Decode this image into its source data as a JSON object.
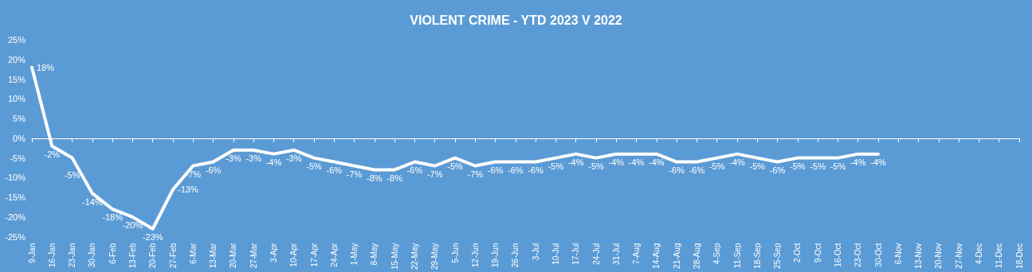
{
  "chart_data": {
    "type": "line",
    "title": "VIOLENT CRIME - YTD 2023 V 2022",
    "categories": [
      "9-Jan",
      "16-Jan",
      "23-Jan",
      "30-Jan",
      "6-Feb",
      "13-Feb",
      "20-Feb",
      "27-Feb",
      "6-Mar",
      "13-Mar",
      "20-Mar",
      "27-Mar",
      "3-Apr",
      "10-Apr",
      "17-Apr",
      "24-Apr",
      "1-May",
      "8-May",
      "15-May",
      "22-May",
      "29-May",
      "5-Jun",
      "12-Jun",
      "19-Jun",
      "26-Jun",
      "3-Jul",
      "10-Jul",
      "17-Jul",
      "24-Jul",
      "31-Jul",
      "7-Aug",
      "14-Aug",
      "21-Aug",
      "28-Aug",
      "4-Sep",
      "11-Sep",
      "18-Sep",
      "25-Sep",
      "2-Oct",
      "9-Oct",
      "16-Oct",
      "23-Oct",
      "30-Oct",
      "6-Nov",
      "13-Nov",
      "20-Nov",
      "27-Nov",
      "4-Dec",
      "11-Dec",
      "18-Dec"
    ],
    "series": [
      {
        "color": "#ffffff",
        "values": [
          18,
          -2,
          -5,
          -14,
          -18,
          -20,
          -23,
          -13,
          -7,
          -6,
          -3,
          -3,
          -4,
          -3,
          -5,
          -6,
          -7,
          -8,
          -8,
          -6,
          -7,
          -5,
          -7,
          -6,
          -6,
          -6,
          -5,
          -4,
          -5,
          -4,
          -4,
          -4,
          -6,
          -6,
          -5,
          -4,
          -5,
          -6,
          -5,
          -5,
          -5,
          -4,
          -4,
          null,
          null,
          null,
          null,
          null,
          null,
          null
        ],
        "value_labels": [
          "18%",
          "-2%",
          "-5%",
          "-14%",
          "-18%",
          "-20%",
          "-23%",
          "-13%",
          "-7%",
          "-6%",
          "-3%",
          "-3%",
          "-4%",
          "-3%",
          "-5%",
          "-6%",
          "-7%",
          "-8%",
          "-8%",
          "-6%",
          "-7%",
          "-5%",
          "-7%",
          "-6%",
          "-6%",
          "-6%",
          "-5%",
          "-4%",
          "-5%",
          "-4%",
          "-4%",
          "-4%",
          "-6%",
          "-6%",
          "-5%",
          "-4%",
          "-5%",
          "-6%",
          "-5%",
          "-5%",
          "-5%",
          "-4%",
          "-4%",
          null,
          null,
          null,
          null,
          null,
          null,
          null
        ]
      }
    ],
    "ylim": [
      -25,
      25
    ],
    "yticks": [
      {
        "value": -25,
        "label": "-25%"
      },
      {
        "value": -20,
        "label": "-20%"
      },
      {
        "value": -15,
        "label": "-15%"
      },
      {
        "value": -10,
        "label": "-10%"
      },
      {
        "value": -5,
        "label": "-5%"
      },
      {
        "value": 0,
        "label": "0%"
      },
      {
        "value": 5,
        "label": "5%"
      },
      {
        "value": 10,
        "label": "10%"
      },
      {
        "value": 15,
        "label": "15%"
      },
      {
        "value": 20,
        "label": "20%"
      },
      {
        "value": 25,
        "label": "25%"
      }
    ],
    "marker": "none",
    "line_style": "solid"
  }
}
